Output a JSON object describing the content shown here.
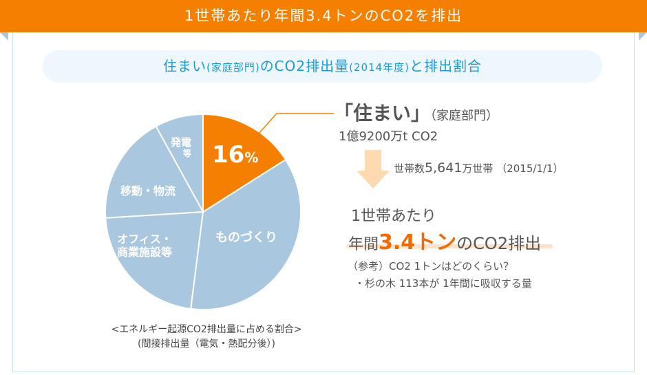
{
  "header": {
    "title": "1世帯あたり年間3.4トンのCO2を排出"
  },
  "subtitle": {
    "part1": "住まい",
    "part2": "(家庭部門)",
    "part3": "のCO2排出量",
    "part4": "(2014年度)",
    "part5": "と排出割合"
  },
  "chart_data": {
    "type": "pie",
    "title": "<エネルギー起源CO2排出量に占める割合>",
    "subtitle": "(間接排出量（電気・熱配分後）)",
    "categories": [
      "住まい（家庭部門）",
      "ものづくり",
      "オフィス・商業施設等",
      "移動・物流",
      "発電等"
    ],
    "labels": [
      "16%",
      "ものづくり",
      "オフィス・商業施設等",
      "移動・物流",
      "発電等"
    ],
    "label_lines": [
      [
        "16",
        "%"
      ],
      [
        "ものづくり"
      ],
      [
        "オフィス・",
        "商業施設等"
      ],
      [
        "移動・物流"
      ],
      [
        "発電",
        "等"
      ]
    ],
    "values": [
      16,
      36,
      22,
      18,
      8
    ],
    "colors": [
      "#f57f00",
      "#a9c8df",
      "#a9c8df",
      "#a9c8df",
      "#a9c8df"
    ]
  },
  "info": {
    "sector_title": "「住まい」",
    "sector_sub": "（家庭部門）",
    "emission": "1億9200万t CO2",
    "households_label": "世帯数",
    "households_value": "5,641",
    "households_unit": "万世帯",
    "households_date": "（2015/1/1）",
    "per_household": "1世帯あたり",
    "annual_prefix": "年間",
    "annual_value": "3.4トン",
    "annual_suffix": "のCO2排出",
    "ref_line1": "（参考）CO2  1トンはどのくらい？",
    "ref_line2": "・杉の木 113本が 1年間に吸収する量"
  }
}
